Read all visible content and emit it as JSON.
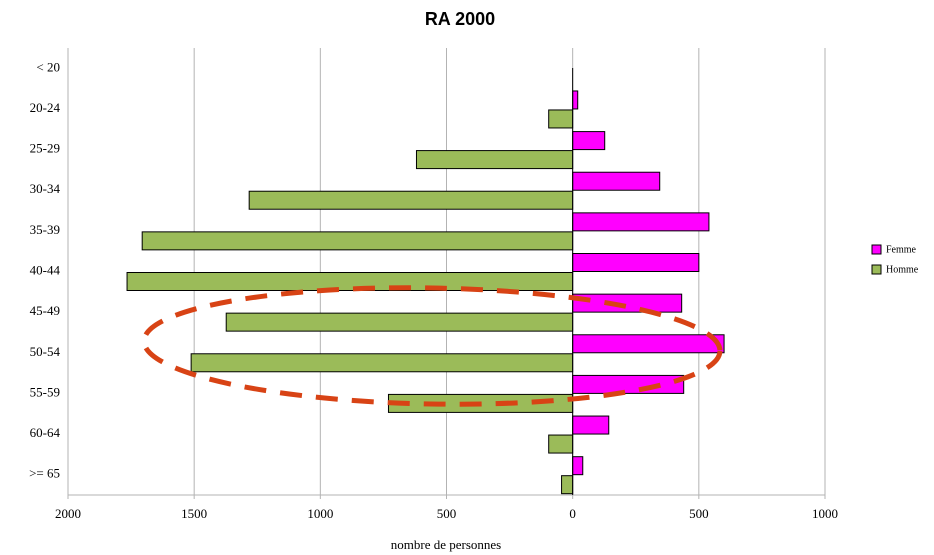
{
  "chart_data": {
    "type": "bar",
    "orientation": "horizontal",
    "title": "RA 2000",
    "x_label": "nombre de personnes",
    "categories": [
      "< 20",
      "20-24",
      "25-29",
      "30-34",
      "35-39",
      "40-44",
      "45-49",
      "50-54",
      "55-59",
      "60-64",
      ">= 65"
    ],
    "series": [
      {
        "name": "Femme",
        "color": "#ff00ff",
        "values": [
          0,
          20,
          127,
          345,
          540,
          500,
          432,
          600,
          440,
          143,
          40
        ]
      },
      {
        "name": "Homme",
        "color": "#9bbb59",
        "values": [
          0,
          -95,
          -619,
          -1282,
          -1706,
          -1766,
          -1373,
          -1512,
          -730,
          -95,
          -44
        ]
      }
    ],
    "xlim": [
      -2000,
      1000
    ],
    "xticks": [
      {
        "value": -2000,
        "label": "2000"
      },
      {
        "value": -1500,
        "label": "1500"
      },
      {
        "value": -1000,
        "label": "1000"
      },
      {
        "value": -500,
        "label": "500"
      },
      0,
      500,
      1000
    ],
    "grid": true,
    "legend": "right"
  }
}
